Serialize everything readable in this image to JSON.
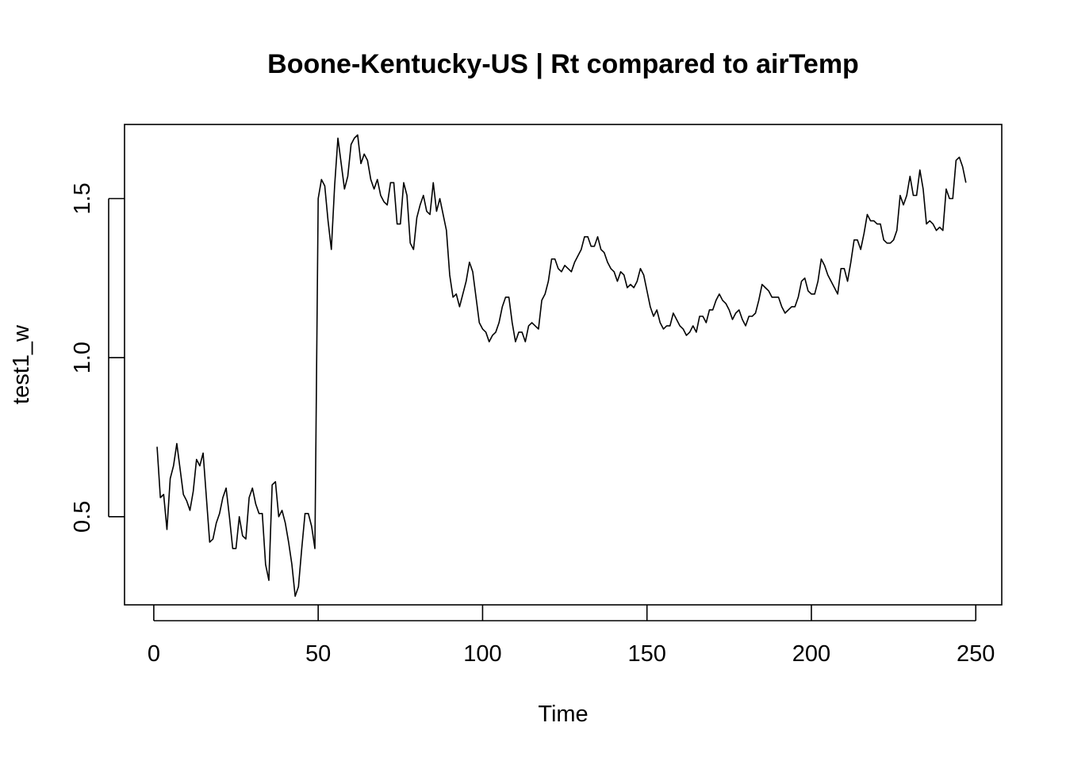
{
  "chart_data": {
    "type": "line",
    "title": "Boone-Kentucky-US | Rt compared to airTemp",
    "xlabel": "Time",
    "ylabel": "test1_w",
    "xlim": [
      -8.9,
      257.9
    ],
    "ylim": [
      0.223,
      1.733
    ],
    "x_ticks": [
      0,
      50,
      100,
      150,
      200,
      250
    ],
    "x_tick_labels": [
      "0",
      "50",
      "100",
      "150",
      "200",
      "250"
    ],
    "y_ticks": [
      0.5,
      1.0,
      1.5
    ],
    "y_tick_labels": [
      "0.5",
      "1.0",
      "1.5"
    ],
    "grid": false,
    "series": [
      {
        "x_start": 1,
        "x_step": 1,
        "color": "#000000",
        "values": [
          0.72,
          0.56,
          0.57,
          0.46,
          0.62,
          0.66,
          0.73,
          0.65,
          0.57,
          0.55,
          0.52,
          0.58,
          0.68,
          0.66,
          0.7,
          0.56,
          0.42,
          0.43,
          0.48,
          0.51,
          0.56,
          0.59,
          0.5,
          0.4,
          0.4,
          0.5,
          0.44,
          0.43,
          0.56,
          0.59,
          0.54,
          0.51,
          0.51,
          0.35,
          0.3,
          0.6,
          0.61,
          0.5,
          0.52,
          0.48,
          0.42,
          0.35,
          0.25,
          0.28,
          0.4,
          0.51,
          0.51,
          0.47,
          0.4,
          1.5,
          1.56,
          1.54,
          1.43,
          1.34,
          1.54,
          1.69,
          1.61,
          1.53,
          1.57,
          1.67,
          1.69,
          1.7,
          1.61,
          1.64,
          1.62,
          1.56,
          1.53,
          1.56,
          1.51,
          1.49,
          1.48,
          1.55,
          1.55,
          1.42,
          1.42,
          1.55,
          1.51,
          1.36,
          1.34,
          1.44,
          1.48,
          1.51,
          1.46,
          1.45,
          1.55,
          1.46,
          1.5,
          1.45,
          1.4,
          1.26,
          1.19,
          1.2,
          1.16,
          1.2,
          1.24,
          1.3,
          1.27,
          1.19,
          1.11,
          1.09,
          1.08,
          1.05,
          1.07,
          1.08,
          1.11,
          1.16,
          1.19,
          1.19,
          1.11,
          1.05,
          1.08,
          1.08,
          1.05,
          1.1,
          1.11,
          1.1,
          1.09,
          1.18,
          1.2,
          1.24,
          1.31,
          1.31,
          1.28,
          1.27,
          1.29,
          1.28,
          1.27,
          1.3,
          1.32,
          1.34,
          1.38,
          1.38,
          1.35,
          1.35,
          1.38,
          1.34,
          1.33,
          1.3,
          1.28,
          1.27,
          1.24,
          1.27,
          1.26,
          1.22,
          1.23,
          1.22,
          1.24,
          1.28,
          1.26,
          1.21,
          1.16,
          1.13,
          1.15,
          1.11,
          1.09,
          1.1,
          1.1,
          1.14,
          1.12,
          1.1,
          1.09,
          1.07,
          1.08,
          1.1,
          1.08,
          1.13,
          1.13,
          1.11,
          1.15,
          1.15,
          1.18,
          1.2,
          1.18,
          1.17,
          1.15,
          1.12,
          1.14,
          1.15,
          1.12,
          1.1,
          1.13,
          1.13,
          1.14,
          1.18,
          1.23,
          1.22,
          1.21,
          1.19,
          1.19,
          1.19,
          1.16,
          1.14,
          1.15,
          1.16,
          1.16,
          1.19,
          1.24,
          1.25,
          1.21,
          1.2,
          1.2,
          1.24,
          1.31,
          1.29,
          1.26,
          1.24,
          1.22,
          1.2,
          1.28,
          1.28,
          1.24,
          1.3,
          1.37,
          1.37,
          1.34,
          1.39,
          1.45,
          1.43,
          1.43,
          1.42,
          1.42,
          1.37,
          1.36,
          1.36,
          1.37,
          1.4,
          1.51,
          1.48,
          1.51,
          1.57,
          1.51,
          1.51,
          1.59,
          1.53,
          1.42,
          1.43,
          1.42,
          1.4,
          1.41,
          1.4,
          1.53,
          1.5,
          1.5,
          1.62,
          1.63,
          1.6,
          1.55
        ]
      }
    ]
  }
}
